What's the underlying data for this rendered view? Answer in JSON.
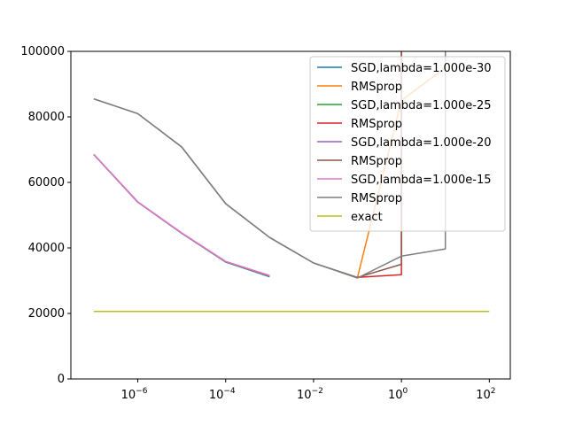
{
  "chart_data": {
    "type": "line",
    "title": "",
    "xlabel": "",
    "ylabel": "",
    "xscale": "log",
    "xlim": [
      3e-08,
      300.0
    ],
    "ylim": [
      0,
      100000
    ],
    "grid": false,
    "legend_position": "top-right",
    "x_ticks": [
      {
        "value": 1e-06,
        "base": "10",
        "exp": "−6"
      },
      {
        "value": 0.0001,
        "base": "10",
        "exp": "−4"
      },
      {
        "value": 0.01,
        "base": "10",
        "exp": "−2"
      },
      {
        "value": 1,
        "base": "10",
        "exp": "0"
      },
      {
        "value": 100,
        "base": "10",
        "exp": "2"
      }
    ],
    "y_ticks": [
      {
        "value": 0,
        "label": "0"
      },
      {
        "value": 20000,
        "label": "20000"
      },
      {
        "value": 40000,
        "label": "40000"
      },
      {
        "value": 60000,
        "label": "60000"
      },
      {
        "value": 80000,
        "label": "80000"
      },
      {
        "value": 100000,
        "label": "100000"
      }
    ],
    "series": [
      {
        "name": "SGD,lambda=1.000e-30",
        "color": "#1f77b4",
        "x": [
          1e-07,
          1e-06,
          1e-05,
          0.0001,
          0.001
        ],
        "y": [
          68500,
          54000,
          44500,
          35700,
          31200
        ]
      },
      {
        "name": "RMSprop",
        "color": "#ff7f0e",
        "x": [
          0.1,
          1,
          10
        ],
        "y": [
          31000,
          85000,
          95000
        ]
      },
      {
        "name": "SGD,lambda=1.000e-25",
        "color": "#2ca02c",
        "x": [
          1e-07,
          1e-06,
          1e-05,
          0.0001,
          0.001
        ],
        "y": [
          68500,
          54000,
          44500,
          35700,
          31300
        ]
      },
      {
        "name": "RMSprop",
        "color": "#d62728",
        "x": [
          0.1,
          1,
          1,
          10,
          10
        ],
        "y": [
          31000,
          31800,
          105000,
          105000,
          105000
        ]
      },
      {
        "name": "SGD,lambda=1.000e-20",
        "color": "#9467bd",
        "x": [
          1e-07,
          1e-06,
          1e-05,
          0.0001,
          0.001
        ],
        "y": [
          68500,
          54000,
          44500,
          35800,
          31400
        ]
      },
      {
        "name": "RMSprop",
        "color": "#8c564b",
        "x": [
          1e-07,
          1e-06,
          1e-05,
          0.0001,
          0.001,
          0.01,
          0.1,
          1,
          1
        ],
        "y": [
          85500,
          81000,
          70800,
          53500,
          43200,
          35400,
          31000,
          35000,
          105000
        ]
      },
      {
        "name": "SGD,lambda=1.000e-15",
        "color": "#e377c2",
        "x": [
          1e-07,
          1e-06,
          1e-05,
          0.0001,
          0.001
        ],
        "y": [
          68600,
          54100,
          44600,
          35900,
          31600
        ]
      },
      {
        "name": "RMSprop",
        "color": "#7f7f7f",
        "x": [
          1e-07,
          1e-06,
          1e-05,
          0.0001,
          0.001,
          0.01,
          0.1,
          1,
          10,
          10
        ],
        "y": [
          85500,
          81000,
          70800,
          53500,
          43200,
          35400,
          30800,
          37500,
          39700,
          105000
        ]
      },
      {
        "name": "exact",
        "color": "#bcbd22",
        "x": [
          1e-07,
          100
        ],
        "y": [
          20600,
          20600
        ]
      }
    ]
  }
}
